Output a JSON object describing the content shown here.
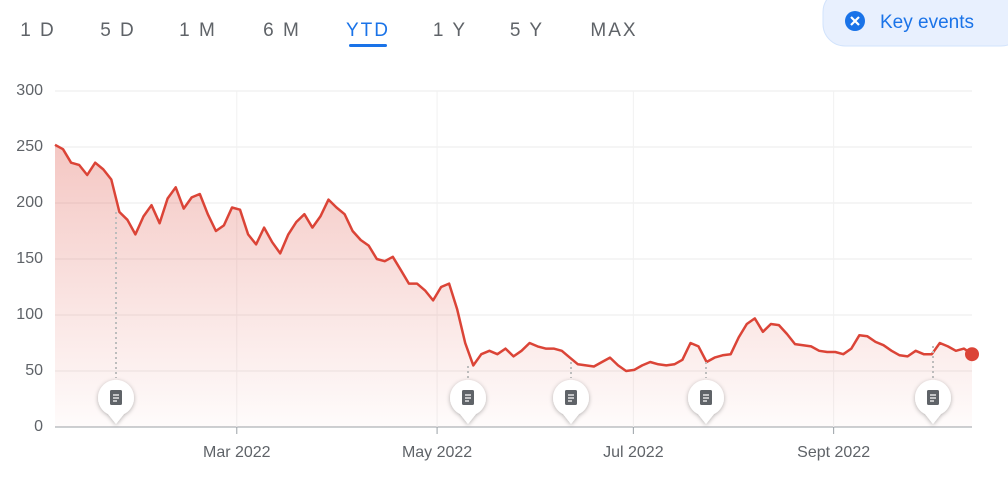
{
  "ranges": [
    "1 D",
    "5 D",
    "1 M",
    "6 M",
    "YTD",
    "1 Y",
    "5 Y",
    "MAX"
  ],
  "active_range": 4,
  "key_events": "Key events",
  "chart_data": {
    "type": "line",
    "color": "#db4437",
    "values": [
      252,
      248,
      236,
      234,
      225,
      236,
      230,
      221,
      192,
      185,
      172,
      188,
      198,
      182,
      204,
      214,
      195,
      205,
      208,
      190,
      175,
      180,
      196,
      194,
      172,
      163,
      178,
      165,
      155,
      172,
      183,
      190,
      178,
      188,
      203,
      196,
      190,
      175,
      167,
      162,
      150,
      148,
      152,
      140,
      128,
      128,
      122,
      113,
      125,
      128,
      105,
      75,
      55,
      65,
      68,
      65,
      70,
      63,
      68,
      75,
      72,
      70,
      70,
      68,
      62,
      56,
      55,
      54,
      58,
      62,
      55,
      50,
      51,
      55,
      58,
      56,
      55,
      56,
      60,
      75,
      72,
      58,
      62,
      64,
      65,
      80,
      92,
      97,
      85,
      92,
      91,
      83,
      74,
      73,
      72,
      68,
      67,
      67,
      65,
      70,
      82,
      81,
      76,
      73,
      68,
      64,
      63,
      68,
      65,
      65,
      75,
      72,
      68,
      70,
      65
    ],
    "xlim": [
      0,
      114
    ],
    "xticks": [
      {
        "value": 22.6,
        "label": "Mar 2022"
      },
      {
        "value": 47.5,
        "label": "May 2022"
      },
      {
        "value": 71.9,
        "label": "Jul 2022"
      },
      {
        "value": 96.8,
        "label": "Sept 2022"
      }
    ],
    "ylim": [
      0,
      300
    ],
    "yticks": [
      0,
      50,
      100,
      150,
      200,
      250,
      300
    ],
    "grid": true
  }
}
